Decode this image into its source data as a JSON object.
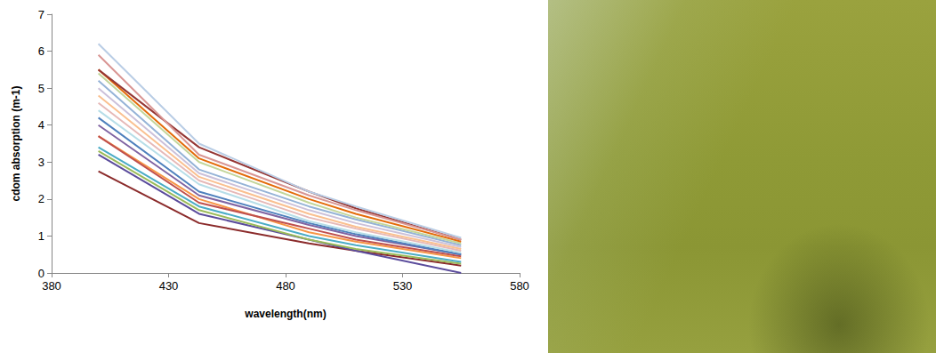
{
  "chart_data": {
    "type": "line",
    "x_label": "wavelength(nm)",
    "y_label": "cdom absorption (m-1)",
    "x": [
      400,
      443,
      490,
      510,
      555
    ],
    "xlim": [
      380,
      580
    ],
    "xticks": [
      380,
      430,
      480,
      530,
      580
    ],
    "ylim": [
      0,
      7
    ],
    "yticks": [
      0,
      1,
      2,
      3,
      4,
      5,
      6,
      7
    ],
    "grid": false,
    "series": [
      {
        "color": "#8b2b2b",
        "values": [
          2.75,
          1.35,
          0.8,
          0.6,
          0.2
        ]
      },
      {
        "color": "#5b4c9c",
        "values": [
          3.2,
          1.6,
          0.9,
          0.6,
          0.0
        ]
      },
      {
        "color": "#9bbb59",
        "values": [
          3.3,
          1.7,
          0.9,
          0.65,
          0.25
        ]
      },
      {
        "color": "#4bacc6",
        "values": [
          3.4,
          1.8,
          1.0,
          0.75,
          0.3
        ]
      },
      {
        "color": "#f79646",
        "values": [
          3.7,
          2.0,
          1.1,
          0.85,
          0.4
        ]
      },
      {
        "color": "#c0504d",
        "values": [
          3.7,
          1.9,
          1.2,
          0.9,
          0.45
        ]
      },
      {
        "color": "#8064a2",
        "values": [
          4.0,
          2.1,
          1.3,
          1.0,
          0.5
        ]
      },
      {
        "color": "#4f81bd",
        "values": [
          4.2,
          2.2,
          1.35,
          1.05,
          0.5
        ]
      },
      {
        "color": "#b7dee8",
        "values": [
          4.4,
          2.4,
          1.4,
          1.1,
          0.55
        ]
      },
      {
        "color": "#e6b9b8",
        "values": [
          4.6,
          2.5,
          1.5,
          1.2,
          0.6
        ]
      },
      {
        "color": "#fac090",
        "values": [
          4.8,
          2.6,
          1.6,
          1.25,
          0.65
        ]
      },
      {
        "color": "#ccc1da",
        "values": [
          5.0,
          2.7,
          1.7,
          1.35,
          0.7
        ]
      },
      {
        "color": "#95b3d7",
        "values": [
          5.2,
          2.8,
          1.8,
          1.45,
          0.75
        ]
      },
      {
        "color": "#c3d69b",
        "values": [
          5.4,
          3.0,
          1.9,
          1.5,
          0.8
        ]
      },
      {
        "color": "#e46c0a",
        "values": [
          5.5,
          3.1,
          2.0,
          1.6,
          0.85
        ]
      },
      {
        "color": "#953735",
        "values": [
          5.5,
          3.4,
          2.2,
          1.75,
          0.9
        ]
      },
      {
        "color": "#d99694",
        "values": [
          5.9,
          3.2,
          2.1,
          1.7,
          0.9
        ]
      },
      {
        "color": "#b9cde5",
        "values": [
          6.2,
          3.5,
          2.2,
          1.8,
          0.95
        ]
      }
    ]
  }
}
